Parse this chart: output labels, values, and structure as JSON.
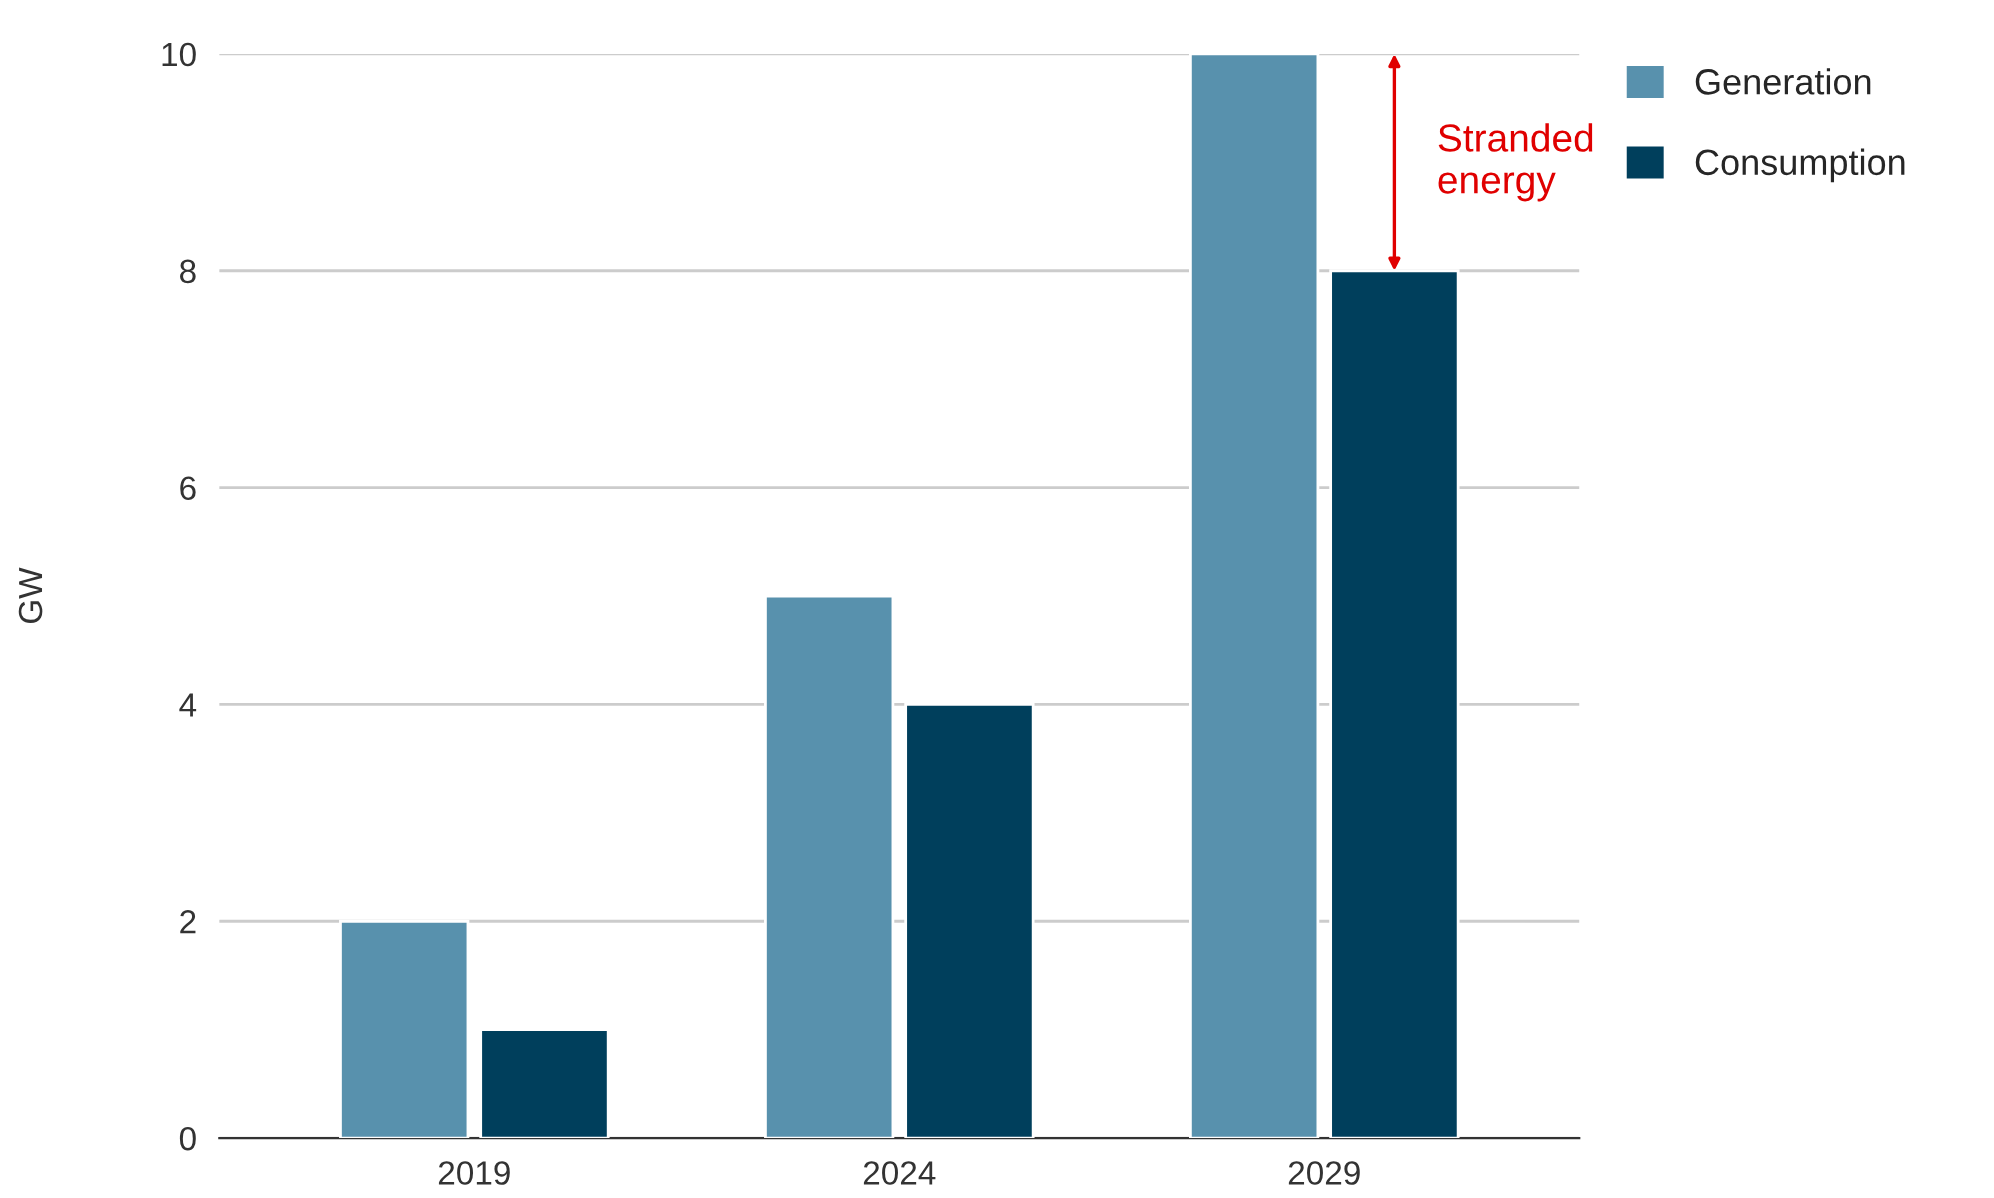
{
  "chart_data": {
    "type": "bar",
    "ylabel": "GW",
    "categories": [
      "2019",
      "2024",
      "2029"
    ],
    "series": [
      {
        "name": "Generation",
        "color": "#5891ad",
        "values": [
          2,
          5,
          10
        ]
      },
      {
        "name": "Consumption",
        "color": "#003f5c",
        "values": [
          1,
          4,
          8
        ]
      }
    ],
    "ylim": [
      0,
      10
    ],
    "yticks": [
      0,
      2,
      4,
      6,
      8,
      10
    ],
    "grid": "y",
    "legend": "top right",
    "annotations": [
      {
        "text": "Stranded\nenergy",
        "x": "2029",
        "y": 9
      }
    ]
  }
}
